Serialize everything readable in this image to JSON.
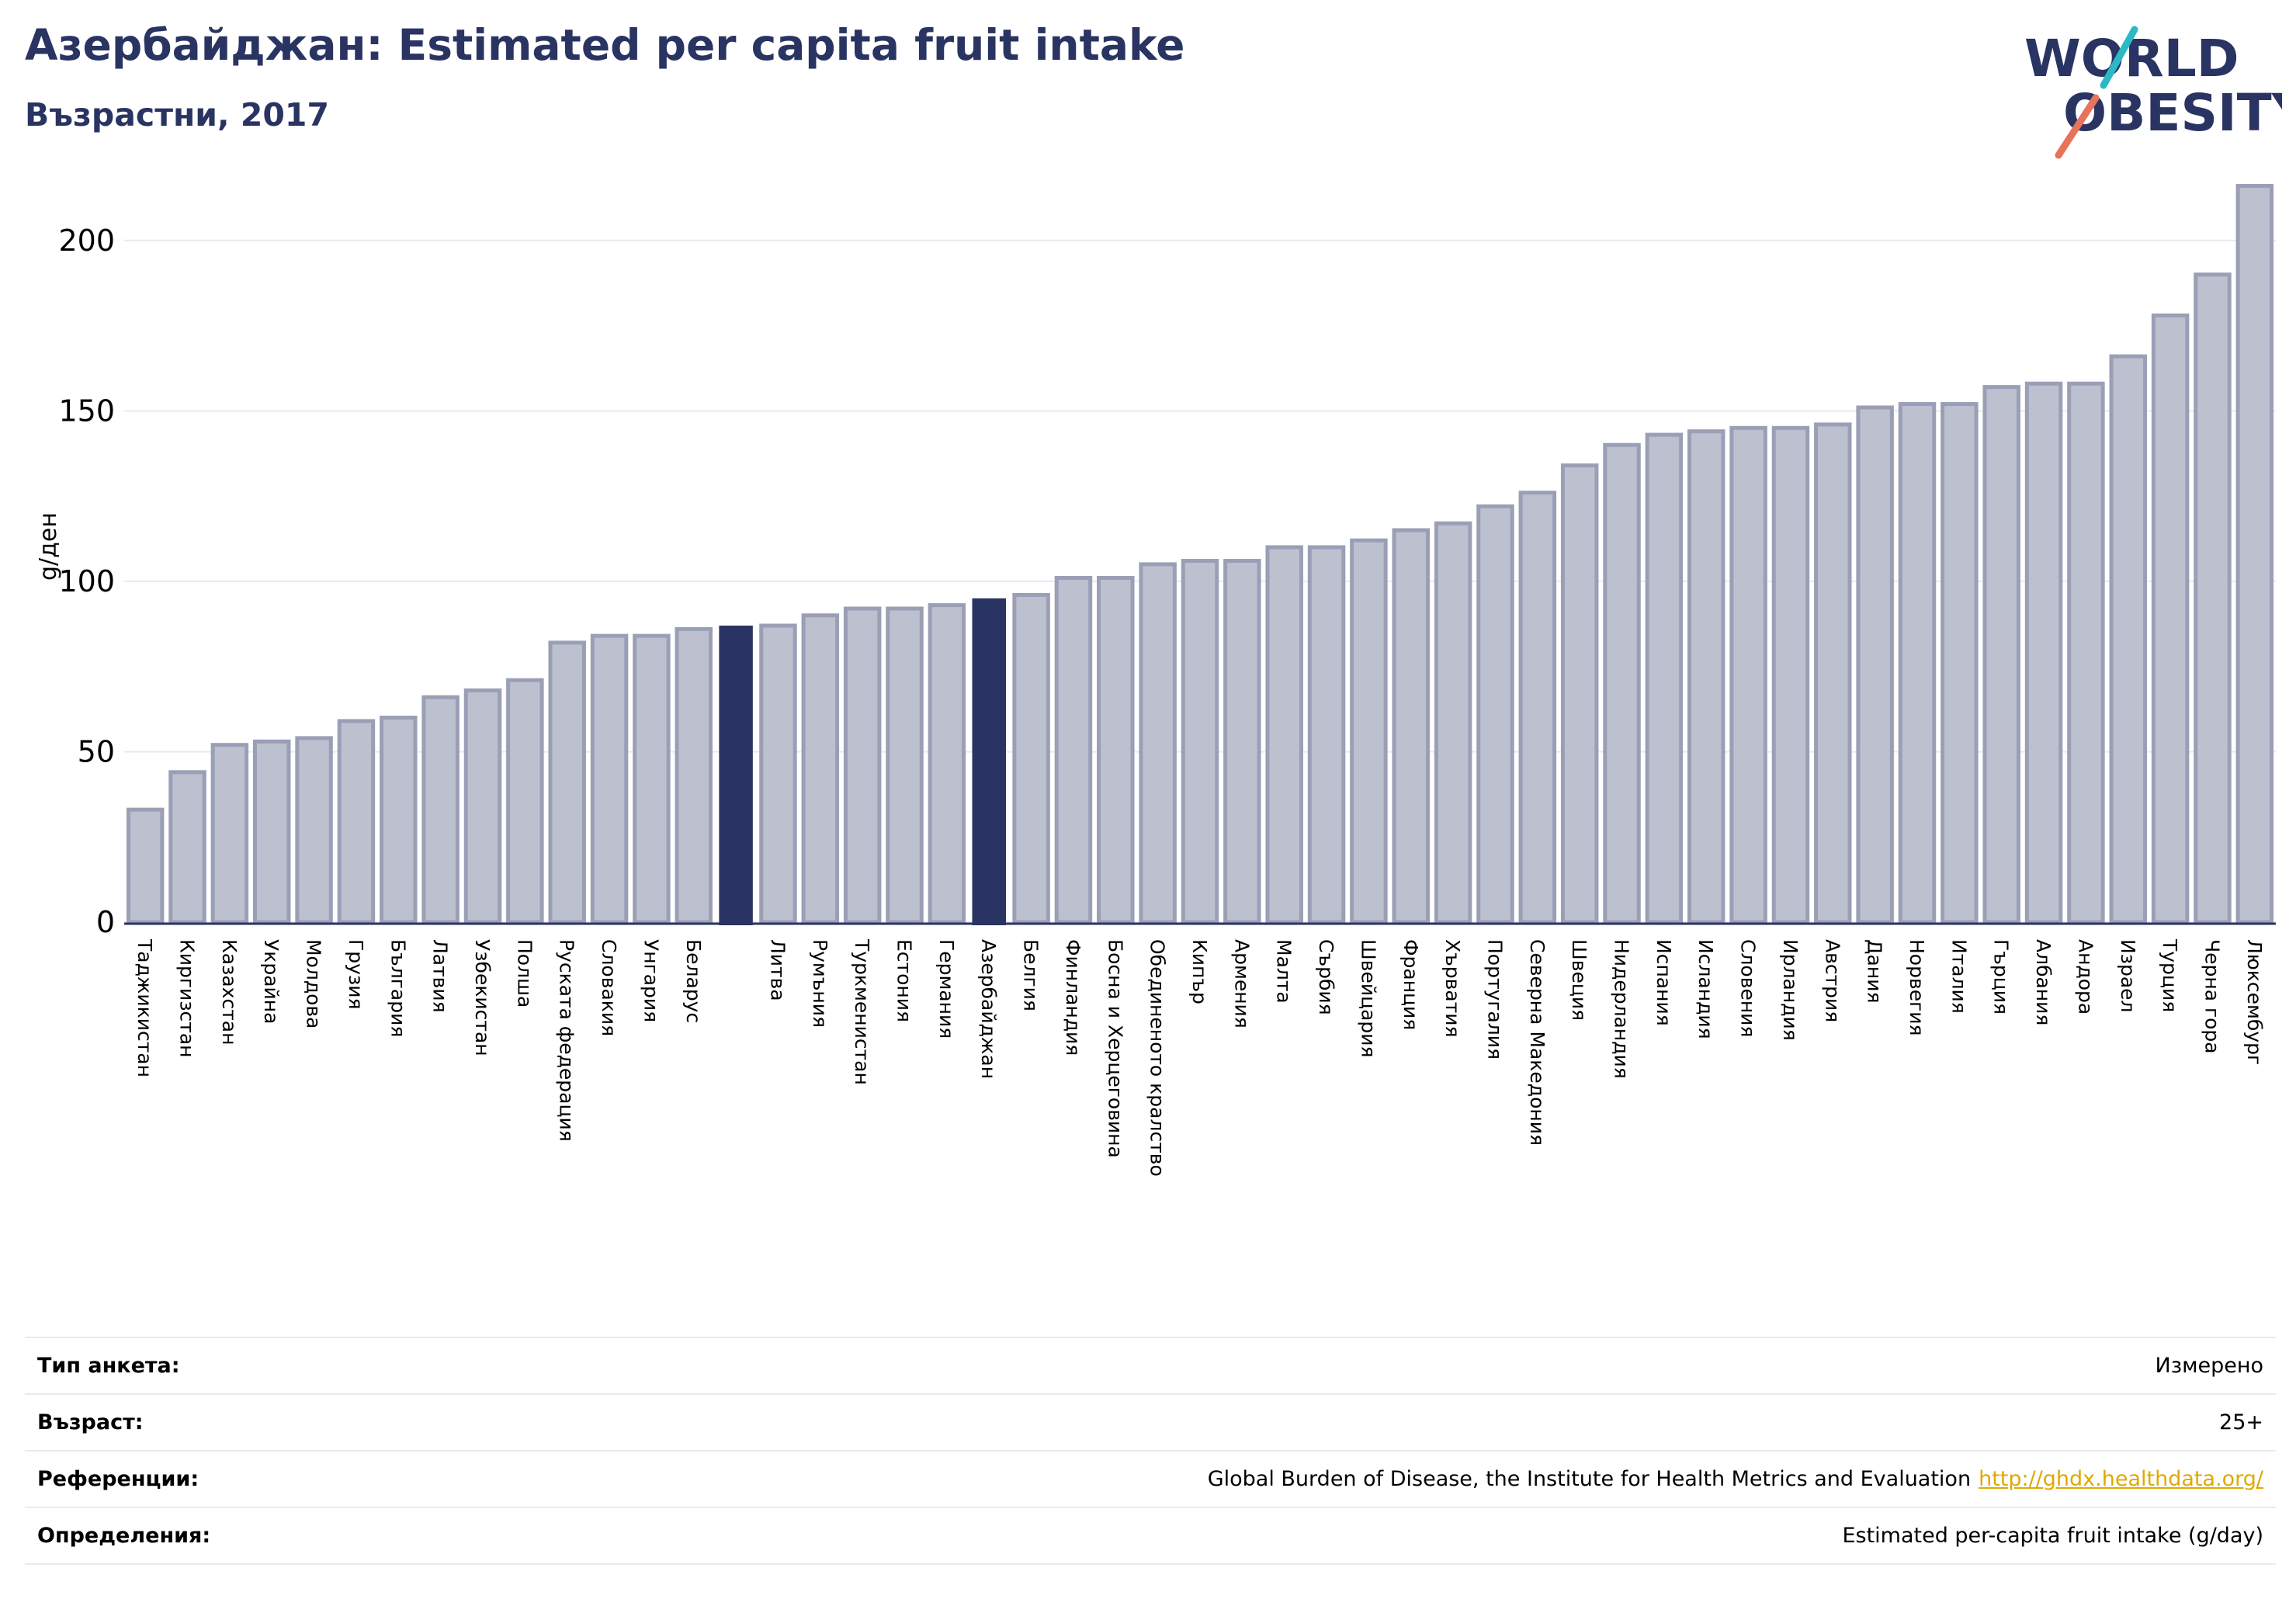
{
  "header": {
    "title": "Азербайджан: Estimated per capita fruit intake",
    "subtitle": "Възрастни, 2017",
    "logo_line1": "WORLD",
    "logo_line2": "OBESITY"
  },
  "colors": {
    "bar_fill": "#bcc0cf",
    "bar_stroke": "#9a9fb6",
    "highlight": "#293462",
    "title": "#293462",
    "grid": "#e6e9ef",
    "logo_teal": "#2cb8c4",
    "logo_coral": "#e8735c",
    "link": "#e0a800"
  },
  "chart_data": {
    "type": "bar",
    "ylabel": "g/ден",
    "ylim": [
      0,
      225
    ],
    "yticks": [
      0,
      50,
      100,
      150,
      200
    ],
    "grid": true,
    "legend": "none",
    "categories": [
      "Таджикистан",
      "Киргизстан",
      "Казахстан",
      "Украйна",
      "Молдова",
      "Грузия",
      "България",
      "Латвия",
      "Узбекистан",
      "Полша",
      "Руската федерация",
      "Словакия",
      "Унгария",
      "Беларус",
      "",
      "Литва",
      "Румъния",
      "Туркменистан",
      "Естония",
      "Германия",
      "Азербайджан",
      "Белгия",
      "Финландия",
      "Босна и Херцеговина",
      "Обединеното кралство",
      "Кипър",
      "Армения",
      "Малта",
      "Сърбия",
      "Швейцария",
      "Франция",
      "Хърватия",
      "Португалия",
      "Северна Македония",
      "Швеция",
      "Нидерландия",
      "Испания",
      "Исландия",
      "Словения",
      "Ирландия",
      "Австрия",
      "Дания",
      "Норвегия",
      "Италия",
      "Гърция",
      "Албания",
      "Андора",
      "Израел",
      "Турция",
      "Черна гора",
      "Люксембург"
    ],
    "values": [
      33,
      44,
      52,
      53,
      54,
      59,
      60,
      66,
      68,
      71,
      82,
      84,
      84,
      86,
      87,
      87,
      90,
      92,
      92,
      93,
      95,
      96,
      101,
      101,
      105,
      106,
      106,
      110,
      110,
      112,
      115,
      117,
      122,
      126,
      134,
      140,
      143,
      144,
      145,
      145,
      146,
      151,
      152,
      152,
      157,
      158,
      158,
      166,
      178,
      190,
      216
    ],
    "highlighted": [
      14,
      20
    ]
  },
  "info": [
    {
      "label": "Тип анкета:",
      "value": "Измерено"
    },
    {
      "label": "Възраст:",
      "value": "25+"
    },
    {
      "label": "Референции:",
      "value": "Global Burden of Disease, the Institute for Health Metrics and Evaluation",
      "link": "http://ghdx.healthdata.org/"
    },
    {
      "label": "Определения:",
      "value": "Estimated per-capita fruit intake (g/day)"
    }
  ]
}
